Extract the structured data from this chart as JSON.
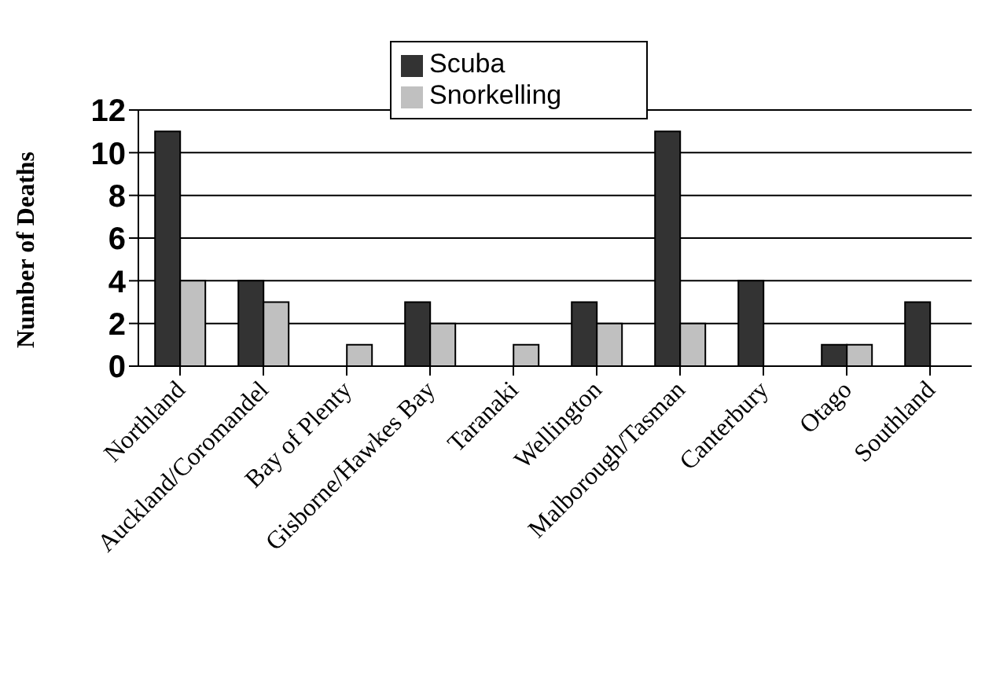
{
  "chart_data": {
    "type": "bar",
    "ylabel": "Number of Deaths",
    "categories": [
      "Northland",
      "Auckland/Coromandel",
      "Bay of Plenty",
      "Gisborne/Hawkes Bay",
      "Taranaki",
      "Wellington",
      "Malborough/Tasman",
      "Canterbury",
      "Otago",
      "Southland"
    ],
    "series": [
      {
        "name": "Scuba",
        "color": "#333333",
        "values": [
          11,
          4,
          0,
          3,
          0,
          3,
          11,
          4,
          1,
          3
        ]
      },
      {
        "name": "Snorkelling",
        "color": "#c0c0c0",
        "values": [
          4,
          3,
          1,
          2,
          1,
          2,
          2,
          0,
          1,
          0
        ]
      }
    ],
    "ylim": [
      0,
      12
    ],
    "yticks": [
      0,
      2,
      4,
      6,
      8,
      10,
      12
    ],
    "grid": "y",
    "legend": "top"
  }
}
